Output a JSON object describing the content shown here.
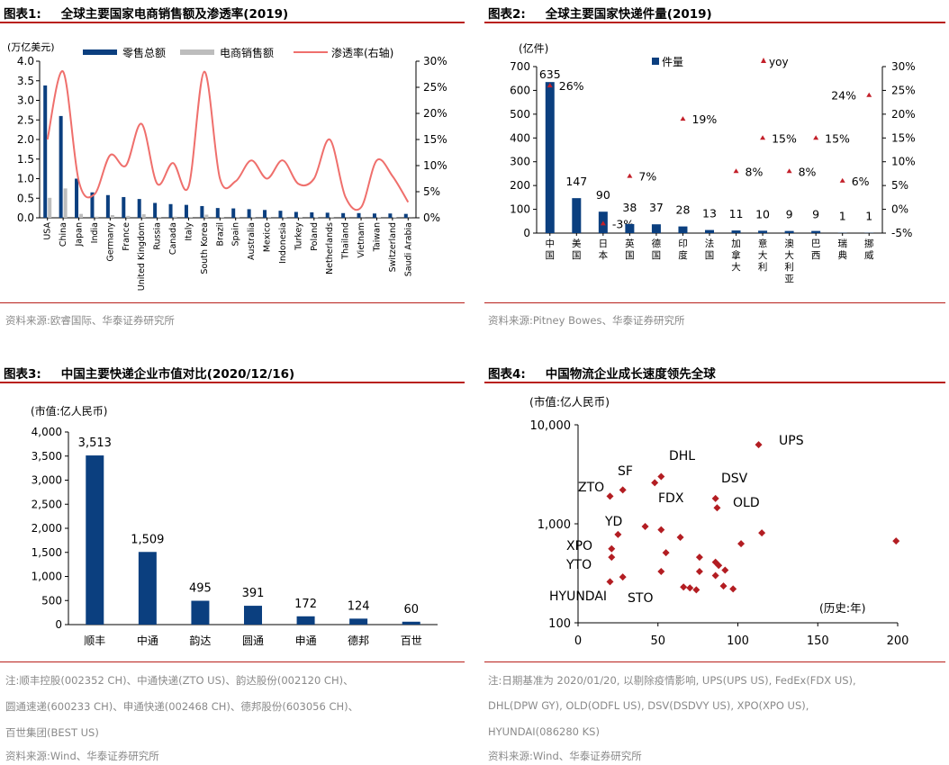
{
  "panels": {
    "p1": {
      "label": "图表1:",
      "title": "全球主要国家电商销售额及渗透率(2019)",
      "source": "资料来源:欧睿国际、华泰证券研究所"
    },
    "p2": {
      "label": "图表2:",
      "title": "全球主要国家快递件量(2019)",
      "source": "资料来源:Pitney Bowes、华泰证券研究所"
    },
    "p3": {
      "label": "图表3:",
      "title": "中国主要快递企业市值对比(2020/12/16)",
      "note1": "注:顺丰控股(002352 CH)、中通快递(ZTO US)、韵达股份(002120 CH)、",
      "note2": "圆通速递(600233 CH)、申通快递(002468 CH)、德邦股份(603056 CH)、",
      "note3": "百世集团(BEST US)",
      "source": "资料来源:Wind、华泰证券研究所"
    },
    "p4": {
      "label": "图表4:",
      "title": "中国物流企业成长速度领先全球",
      "note1": "注:日期基准为 2020/01/20, 以剔除疫情影响, UPS(UPS US), FedEx(FDX US),",
      "note2": "DHL(DPW GY), OLD(ODFL US), DSV(DSDVY US), XPO(XPO US),",
      "note3": "HYUNDAI(086280 KS)",
      "source": "资料来源:Wind、华泰证券研究所"
    }
  },
  "chart_data": [
    {
      "id": "chart1",
      "type": "bar",
      "ylabel": "(万亿美元)",
      "ylim": [
        0,
        4.0
      ],
      "yticks": [
        "0.0",
        "0.5",
        "1.0",
        "1.5",
        "2.0",
        "2.5",
        "3.0",
        "3.5",
        "4.0"
      ],
      "y2lim": [
        0,
        30
      ],
      "y2ticks": [
        "0%",
        "5%",
        "10%",
        "15%",
        "20%",
        "25%",
        "30%"
      ],
      "categories": [
        "USA",
        "China",
        "Japan",
        "India",
        "Germany",
        "France",
        "United Kingdom",
        "Russia",
        "Canada",
        "Italy",
        "South Korea",
        "Brazil",
        "Spain",
        "Australia",
        "Mexico",
        "Indonesia",
        "Turkey",
        "Poland",
        "Netherlands",
        "Thailand",
        "Vietnam",
        "Taiwan",
        "Switzerland",
        "Saudi Arabia"
      ],
      "legend_position": "top",
      "series": [
        {
          "name": "零售总额",
          "type": "bar",
          "color": "#0b3f7f",
          "values": [
            3.38,
            2.6,
            1.0,
            0.65,
            0.58,
            0.53,
            0.48,
            0.38,
            0.35,
            0.33,
            0.3,
            0.25,
            0.24,
            0.22,
            0.2,
            0.18,
            0.15,
            0.14,
            0.13,
            0.12,
            0.12,
            0.11,
            0.11,
            0.1
          ]
        },
        {
          "name": "电商销售额",
          "type": "bar",
          "color": "#bdbdbd",
          "values": [
            0.51,
            0.75,
            0.1,
            0.03,
            0.07,
            0.05,
            0.09,
            0.02,
            0.03,
            0.02,
            0.08,
            0.01,
            0.02,
            0.02,
            0.02,
            0.02,
            0.01,
            0.01,
            0.02,
            0.004,
            0.003,
            0.01,
            0.01,
            0.002
          ]
        },
        {
          "name": "渗透率(右轴)",
          "type": "line",
          "color": "#ef6f6c",
          "axis": "right",
          "values": [
            15,
            28,
            7,
            4.5,
            12,
            10,
            18,
            6.5,
            10.5,
            6,
            28,
            7.5,
            7,
            11,
            7.5,
            11,
            6.5,
            7.5,
            15,
            4,
            2,
            11,
            8,
            3
          ]
        }
      ]
    },
    {
      "id": "chart2",
      "type": "bar",
      "ylabel": "(亿件)",
      "ylim": [
        0,
        700
      ],
      "yticks": [
        "0",
        "100",
        "200",
        "300",
        "400",
        "500",
        "600",
        "700"
      ],
      "y2lim": [
        -5,
        30
      ],
      "y2ticks": [
        "-5%",
        "0%",
        "5%",
        "10%",
        "15%",
        "20%",
        "25%",
        "30%"
      ],
      "categories": [
        "中国",
        "美国",
        "日本",
        "英国",
        "德国",
        "印度",
        "法国",
        "加拿大",
        "意大利",
        "澳大利亚",
        "巴西",
        "瑞典",
        "挪威"
      ],
      "legend_position": "top",
      "series": [
        {
          "name": "件量",
          "type": "bar",
          "color": "#0b3f7f",
          "values": [
            635,
            147,
            90,
            38,
            37,
            28,
            13,
            11,
            10,
            9,
            9,
            1,
            1
          ],
          "labels": [
            "635",
            "147",
            "90",
            "38",
            "37",
            "28",
            "13",
            "11",
            "10",
            "9",
            "9",
            "1",
            "1"
          ]
        },
        {
          "name": "yoy",
          "type": "scatter",
          "color": "#c3202a",
          "axis": "right",
          "values": [
            26,
            null,
            -3,
            7,
            null,
            19,
            null,
            8,
            15,
            8,
            15,
            6,
            24
          ],
          "labels": [
            "26%",
            "",
            "-3%",
            "7%",
            "",
            "19%",
            "",
            "8%",
            "15%",
            "8%",
            "15%",
            "6%",
            "24%"
          ]
        }
      ]
    },
    {
      "id": "chart3",
      "type": "bar",
      "ylabel": "(市值:亿人民币)",
      "ylim": [
        0,
        4000
      ],
      "yticks": [
        "0",
        "500",
        "1,000",
        "1,500",
        "2,000",
        "2,500",
        "3,000",
        "3,500",
        "4,000"
      ],
      "categories": [
        "顺丰",
        "中通",
        "韵达",
        "圆通",
        "申通",
        "德邦",
        "百世"
      ],
      "series": [
        {
          "name": "市值",
          "color": "#0b3f7f",
          "values": [
            3513,
            1509,
            495,
            391,
            172,
            124,
            60
          ],
          "labels": [
            "3,513",
            "1,509",
            "495",
            "391",
            "172",
            "124",
            "60"
          ]
        }
      ]
    },
    {
      "id": "chart4",
      "type": "scatter",
      "ylabel": "(市值:亿人民币)",
      "xlabel": "(历史:年)",
      "yscale": "log",
      "ylim": [
        100,
        10000
      ],
      "yticks": [
        "100",
        "1,000",
        "10,000"
      ],
      "xlim": [
        0,
        200
      ],
      "xticks": [
        "0",
        "50",
        "100",
        "150",
        "200"
      ],
      "color": "#b31d22",
      "points": [
        {
          "x": 113,
          "y": 6300,
          "label": "UPS"
        },
        {
          "x": 52,
          "y": 3000,
          "label": "DHL"
        },
        {
          "x": 48,
          "y": 2600,
          "label": "SF"
        },
        {
          "x": 28,
          "y": 2200,
          "label": "SF"
        },
        {
          "x": 20,
          "y": 1900,
          "label": "ZTO"
        },
        {
          "x": 86,
          "y": 1800,
          "label": "DSV"
        },
        {
          "x": 87,
          "y": 1450,
          "label": "OLD"
        },
        {
          "x": 42,
          "y": 940,
          "label": "FDX"
        },
        {
          "x": 52,
          "y": 870
        },
        {
          "x": 25,
          "y": 780,
          "label": "YD"
        },
        {
          "x": 64,
          "y": 730
        },
        {
          "x": 115,
          "y": 810
        },
        {
          "x": 102,
          "y": 630
        },
        {
          "x": 199,
          "y": 670
        },
        {
          "x": 21,
          "y": 560,
          "label": "XPO"
        },
        {
          "x": 55,
          "y": 510
        },
        {
          "x": 21,
          "y": 460,
          "label": "YTO"
        },
        {
          "x": 76,
          "y": 460
        },
        {
          "x": 86,
          "y": 410
        },
        {
          "x": 88,
          "y": 380
        },
        {
          "x": 52,
          "y": 330
        },
        {
          "x": 76,
          "y": 330
        },
        {
          "x": 92,
          "y": 340
        },
        {
          "x": 28,
          "y": 290
        },
        {
          "x": 20,
          "y": 260,
          "label": "HYUNDAI"
        },
        {
          "x": 86,
          "y": 300
        },
        {
          "x": 66,
          "y": 230
        },
        {
          "x": 70,
          "y": 225
        },
        {
          "x": 74,
          "y": 215
        },
        {
          "x": 91,
          "y": 235
        },
        {
          "x": 97,
          "y": 220,
          "label": "STO"
        }
      ],
      "annotations": [
        "UPS",
        "DHL",
        "SF",
        "DSV",
        "ZTO",
        "FDX",
        "OLD",
        "YD",
        "XPO",
        "YTO",
        "HYUNDAI",
        "STO"
      ]
    }
  ]
}
